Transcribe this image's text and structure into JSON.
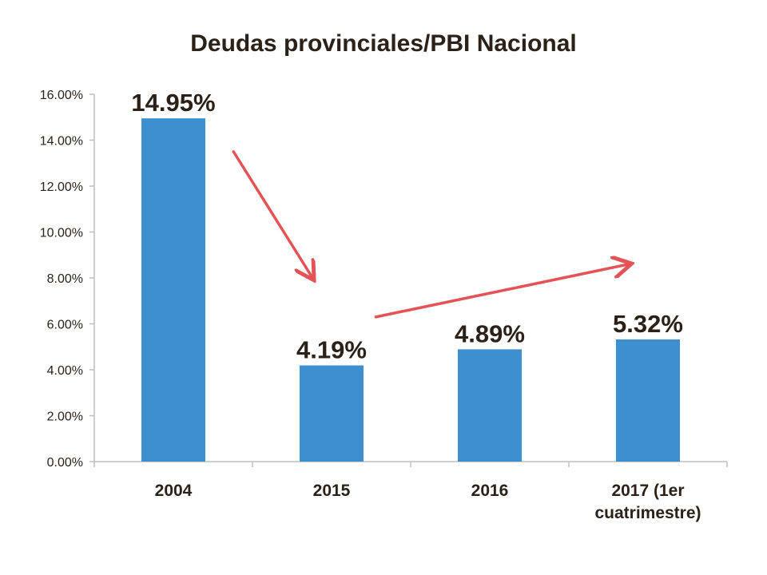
{
  "chart_data": {
    "type": "bar",
    "title": "Deudas provinciales/PBI Nacional",
    "categories": [
      [
        "2004"
      ],
      [
        "2015"
      ],
      [
        "2016"
      ],
      [
        "2017 (1er",
        "cuatrimestre)"
      ]
    ],
    "values": [
      14.95,
      4.19,
      4.89,
      5.32
    ],
    "data_labels": [
      "14.95%",
      "4.19%",
      "4.89%",
      "5.32%"
    ],
    "ylim": [
      0,
      16
    ],
    "yticks": [
      0,
      2,
      4,
      6,
      8,
      10,
      12,
      14,
      16
    ],
    "ytick_labels": [
      "0.00%",
      "2.00%",
      "4.00%",
      "6.00%",
      "8.00%",
      "10.00%",
      "12.00%",
      "14.00%",
      "16.00%"
    ],
    "grid": false,
    "legend": "none",
    "colors": {
      "bar": "#3d8fd0",
      "axis": "#bfbfbf",
      "text": "#2b2118",
      "arrow": "#e35356"
    },
    "annotations": [
      {
        "type": "arrow",
        "from": {
          "category_index": 0.38,
          "value": 13.5
        },
        "to": {
          "category_index": 0.88,
          "value": 8.0
        }
      },
      {
        "type": "arrow",
        "from": {
          "category_index": 1.28,
          "value": 6.3
        },
        "to": {
          "category_index": 2.88,
          "value": 8.6
        }
      }
    ]
  }
}
